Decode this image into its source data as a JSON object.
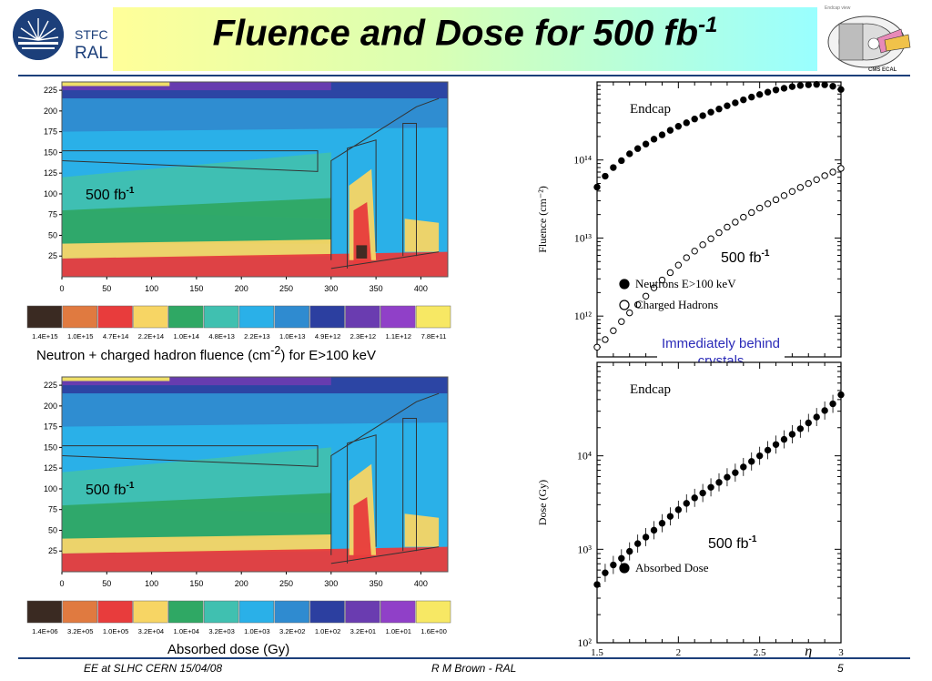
{
  "header": {
    "logo_line1": "STFC",
    "logo_line2": "RAL",
    "title_main": "Fluence and Dose for 500 fb",
    "title_sup": "-1",
    "cms_label": "CMS ECAL"
  },
  "fluence_map": {
    "y_ticks": [
      "225",
      "200",
      "175",
      "150",
      "125",
      "100",
      "75",
      "50",
      "25"
    ],
    "x_ticks": [
      "0",
      "50",
      "100",
      "150",
      "200",
      "250",
      "300",
      "350",
      "400"
    ],
    "scale_labels": [
      "1.4E+15",
      "1.0E+15",
      "4.7E+14",
      "2.2E+14",
      "1.0E+14",
      "4.8E+13",
      "2.2E+13",
      "1.0E+13",
      "4.9E+12",
      "2.3E+12",
      "1.1E+12",
      "7.8E+11"
    ],
    "scale_colors": [
      "#3a2a22",
      "#e07a40",
      "#e83c3c",
      "#f7d564",
      "#2fa864",
      "#40c0b0",
      "#2ab0e8",
      "#2f8bd0",
      "#2c3fa0",
      "#6a3cb0",
      "#9040c8",
      "#f7e864"
    ],
    "note_main": "500 fb",
    "note_sup": "-1",
    "caption_pre": "Neutron + charged hadron fluence (cm",
    "caption_sup": "-2",
    "caption_post": ") for E>100 keV"
  },
  "dose_map": {
    "y_ticks": [
      "225",
      "200",
      "175",
      "150",
      "125",
      "100",
      "75",
      "50",
      "25"
    ],
    "x_ticks": [
      "0",
      "50",
      "100",
      "150",
      "200",
      "250",
      "300",
      "350",
      "400"
    ],
    "scale_labels": [
      "1.4E+06",
      "3.2E+05",
      "1.0E+05",
      "3.2E+04",
      "1.0E+04",
      "3.2E+03",
      "1.0E+03",
      "3.2E+02",
      "1.0E+02",
      "3.2E+01",
      "1.0E+01",
      "1.6E+00"
    ],
    "scale_colors": [
      "#3a2a22",
      "#e07a40",
      "#e83c3c",
      "#f7d564",
      "#2fa864",
      "#40c0b0",
      "#2ab0e8",
      "#2f8bd0",
      "#2c3fa0",
      "#6a3cb0",
      "#9040c8",
      "#f7e864"
    ],
    "note_main": "500 fb",
    "note_sup": "-1",
    "caption": "Absorbed dose (Gy)"
  },
  "fluence_plot": {
    "label": "Endcap",
    "ylabel": "Fluence (cm⁻²)",
    "y_tick_labels": [
      "10¹⁴",
      "10¹³",
      "10¹²"
    ],
    "legend": [
      "Neutrons E>100 keV",
      "Charged Hadrons"
    ],
    "note_main": "500 fb",
    "note_sup": "-1"
  },
  "between_note": "Immediately behind crystals",
  "dose_plot": {
    "label": "Endcap",
    "ylabel": "Dose (Gy)",
    "y_tick_labels": [
      "10⁴",
      "10³",
      "10²"
    ],
    "x_tick_labels": [
      "1.5",
      "2",
      "2.5",
      "3"
    ],
    "xlabel_symbol": "η",
    "legend": [
      "Absorbed Dose"
    ],
    "note_main": "500 fb",
    "note_sup": "-1"
  },
  "chart_data": [
    {
      "type": "scatter",
      "title": "Endcap",
      "ylabel": "Fluence (cm⁻²)",
      "yscale": "log",
      "xlim": [
        1.5,
        3.0
      ],
      "ylim": [
        300000000000.0,
        1000000000000000.0
      ],
      "series": [
        {
          "name": "Neutrons E>100 keV",
          "x": [
            1.5,
            1.55,
            1.6,
            1.65,
            1.7,
            1.75,
            1.8,
            1.85,
            1.9,
            1.95,
            2.0,
            2.05,
            2.1,
            2.15,
            2.2,
            2.25,
            2.3,
            2.35,
            2.4,
            2.45,
            2.5,
            2.55,
            2.6,
            2.65,
            2.7,
            2.75,
            2.8,
            2.85,
            2.9,
            2.95,
            3.0
          ],
          "y": [
            45000000000000.0,
            62000000000000.0,
            80000000000000.0,
            98000000000000.0,
            120000000000000.0,
            140000000000000.0,
            160000000000000.0,
            185000000000000.0,
            210000000000000.0,
            240000000000000.0,
            270000000000000.0,
            300000000000000.0,
            335000000000000.0,
            370000000000000.0,
            410000000000000.0,
            450000000000000.0,
            495000000000000.0,
            540000000000000.0,
            590000000000000.0,
            640000000000000.0,
            690000000000000.0,
            740000000000000.0,
            790000000000000.0,
            830000000000000.0,
            870000000000000.0,
            900000000000000.0,
            920000000000000.0,
            930000000000000.0,
            920000000000000.0,
            880000000000000.0,
            800000000000000.0
          ]
        },
        {
          "name": "Charged Hadrons",
          "x": [
            1.5,
            1.55,
            1.6,
            1.65,
            1.7,
            1.75,
            1.8,
            1.85,
            1.9,
            1.95,
            2.0,
            2.05,
            2.1,
            2.15,
            2.2,
            2.25,
            2.3,
            2.35,
            2.4,
            2.45,
            2.5,
            2.55,
            2.6,
            2.65,
            2.7,
            2.75,
            2.8,
            2.85,
            2.9,
            2.95,
            3.0
          ],
          "y": [
            400000000000.0,
            500000000000.0,
            650000000000.0,
            850000000000.0,
            1100000000000.0,
            1400000000000.0,
            1800000000000.0,
            2300000000000.0,
            2900000000000.0,
            3600000000000.0,
            4500000000000.0,
            5600000000000.0,
            6800000000000.0,
            8200000000000.0,
            9800000000000.0,
            11700000000000.0,
            13800000000000.0,
            16000000000000.0,
            18500000000000.0,
            21200000000000.0,
            24200000000000.0,
            27500000000000.0,
            31000000000000.0,
            35000000000000.0,
            39500000000000.0,
            44500000000000.0,
            50000000000000.0,
            56000000000000.0,
            63000000000000.0,
            70000000000000.0,
            78000000000000.0
          ]
        }
      ]
    },
    {
      "type": "scatter",
      "title": "Endcap",
      "ylabel": "Dose (Gy)",
      "xlabel": "η",
      "yscale": "log",
      "xlim": [
        1.5,
        3.0
      ],
      "ylim": [
        100,
        100000
      ],
      "series": [
        {
          "name": "Absorbed Dose",
          "x": [
            1.5,
            1.55,
            1.6,
            1.65,
            1.7,
            1.75,
            1.8,
            1.85,
            1.9,
            1.95,
            2.0,
            2.05,
            2.1,
            2.15,
            2.2,
            2.25,
            2.3,
            2.35,
            2.4,
            2.45,
            2.5,
            2.55,
            2.6,
            2.65,
            2.7,
            2.75,
            2.8,
            2.85,
            2.9,
            2.95,
            3.0
          ],
          "y": [
            420,
            560,
            680,
            800,
            950,
            1150,
            1350,
            1600,
            1900,
            2250,
            2650,
            3100,
            3550,
            4000,
            4600,
            5200,
            5900,
            6600,
            7600,
            8700,
            10000,
            11500,
            13200,
            15000,
            17000,
            19500,
            22500,
            26000,
            30500,
            36000,
            45000
          ]
        }
      ]
    }
  ]
}
